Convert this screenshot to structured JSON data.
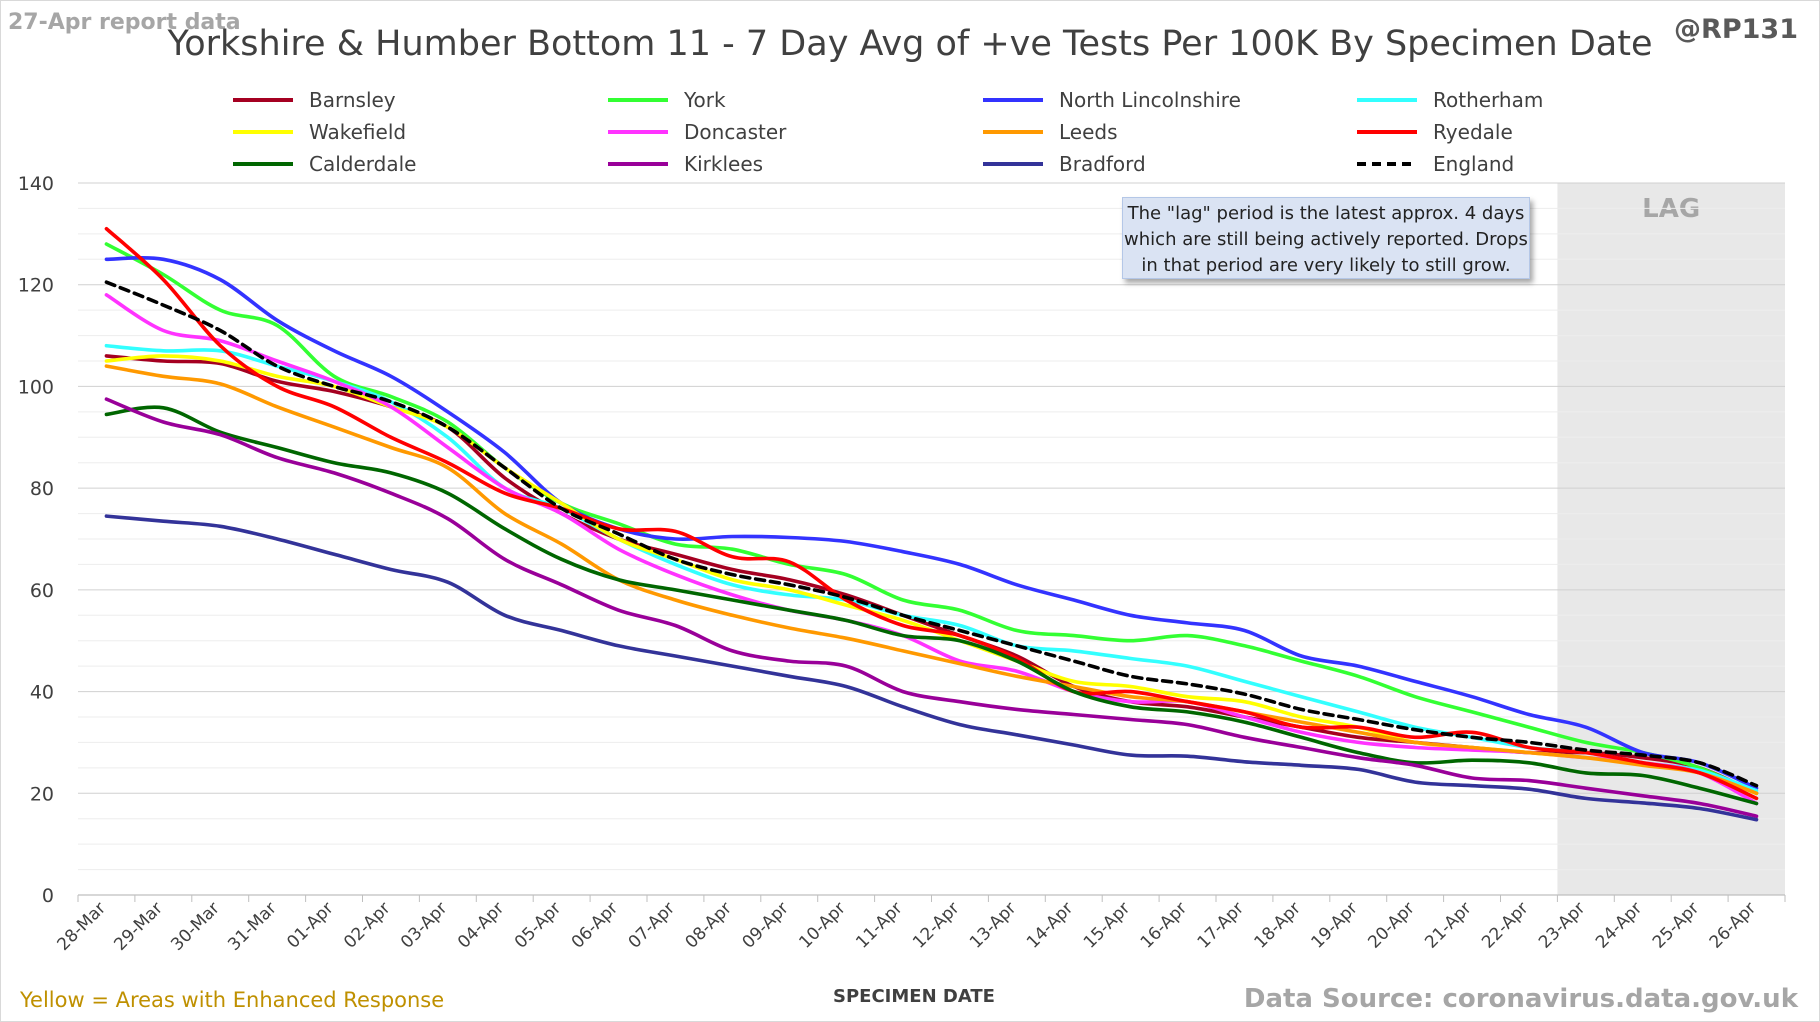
{
  "header": {
    "report_date": "27-Apr report data",
    "handle": "@RP131"
  },
  "footer": {
    "enhanced_note": "Yellow = Areas with Enhanced Response",
    "source": "Data Source: coronavirus.data.gov.uk"
  },
  "annotation": "The \"lag\" period is the latest approx. 4 days which are still being actively reported.  Drops in that period are very likely to still grow.",
  "lag_label": "LAG",
  "chart_data": {
    "type": "line",
    "title": "Yorkshire & Humber Bottom 11 - 7 Day Avg of +ve Tests Per 100K By Specimen Date",
    "xlabel": "SPECIMEN DATE",
    "ylabel": "",
    "ylim": [
      0,
      140
    ],
    "yticks": [
      0,
      20,
      40,
      60,
      80,
      100,
      120,
      140
    ],
    "grid": true,
    "legend_position": "top",
    "lag_period": [
      "23-Apr",
      "26-Apr"
    ],
    "categories": [
      "28-Mar",
      "29-Mar",
      "30-Mar",
      "31-Mar",
      "01-Apr",
      "02-Apr",
      "03-Apr",
      "04-Apr",
      "05-Apr",
      "06-Apr",
      "07-Apr",
      "08-Apr",
      "09-Apr",
      "10-Apr",
      "11-Apr",
      "12-Apr",
      "13-Apr",
      "14-Apr",
      "15-Apr",
      "16-Apr",
      "17-Apr",
      "18-Apr",
      "19-Apr",
      "20-Apr",
      "21-Apr",
      "22-Apr",
      "23-Apr",
      "24-Apr",
      "25-Apr",
      "26-Apr"
    ],
    "series": [
      {
        "name": "Barnsley",
        "color": "#a50021",
        "dashed": false,
        "values": [
          106,
          105,
          104.5,
          101,
          99,
          96,
          92,
          82,
          75,
          70,
          67,
          64,
          62,
          59,
          55,
          51,
          47,
          41,
          38,
          37,
          35,
          33,
          31,
          30,
          29,
          28,
          28,
          27,
          25,
          20
        ]
      },
      {
        "name": "York",
        "color": "#33ff33",
        "dashed": false,
        "values": [
          128,
          122,
          115,
          112,
          102,
          98,
          93,
          84,
          77,
          73,
          69,
          68,
          65,
          63,
          58,
          56,
          52,
          51,
          50,
          51,
          49,
          46,
          43,
          39,
          36,
          33,
          30,
          28,
          25,
          20
        ]
      },
      {
        "name": "North Lincolnshire",
        "color": "#3333ff",
        "dashed": false,
        "values": [
          125,
          125,
          121,
          113,
          107,
          102,
          95,
          87,
          77,
          72,
          70,
          70.5,
          70.3,
          69.5,
          67.5,
          65,
          61,
          58,
          55,
          53.5,
          52,
          47,
          45,
          42,
          39,
          35.5,
          33,
          28,
          26,
          21
        ]
      },
      {
        "name": "Rotherham",
        "color": "#33ffff",
        "dashed": false,
        "values": [
          108,
          107,
          107,
          104,
          101,
          97,
          90,
          80,
          76,
          70,
          65,
          61,
          59,
          58,
          55,
          53,
          49,
          48,
          46.5,
          45,
          42,
          39,
          36,
          33,
          31,
          29,
          28,
          26,
          24.5,
          20.5
        ]
      },
      {
        "name": "Wakefield",
        "color": "#ffff00",
        "dashed": false,
        "values": [
          105,
          106,
          105,
          102,
          100,
          96,
          92,
          84,
          77,
          70,
          66,
          62,
          60,
          57,
          54,
          50,
          46,
          42,
          41,
          39,
          38,
          35,
          33,
          30,
          29,
          28,
          27,
          26,
          24,
          20
        ]
      },
      {
        "name": "Doncaster",
        "color": "#ff33ff",
        "dashed": false,
        "values": [
          118,
          111,
          109,
          105,
          101,
          96,
          88,
          80,
          75,
          68,
          63,
          59,
          56,
          54,
          51,
          46,
          44,
          40,
          38,
          38,
          35,
          32,
          30,
          29,
          28.5,
          28,
          27,
          26,
          24,
          18
        ]
      },
      {
        "name": "Leeds",
        "color": "#ff9900",
        "dashed": false,
        "values": [
          104,
          102,
          100.5,
          96,
          92,
          88,
          84,
          75,
          69,
          62,
          58,
          55,
          52.5,
          50.5,
          48,
          45.5,
          43,
          41,
          39,
          38,
          36,
          34,
          32,
          30,
          29,
          28,
          27,
          25.5,
          24,
          20
        ]
      },
      {
        "name": "Ryedale",
        "color": "#ff0000",
        "dashed": false,
        "values": [
          131,
          121,
          108,
          100,
          96,
          90,
          85,
          79,
          76,
          72,
          71.5,
          66.5,
          65.5,
          58,
          53,
          51,
          46.5,
          40,
          40,
          38,
          36,
          33,
          33,
          31,
          32,
          29,
          28,
          26,
          24,
          19
        ]
      },
      {
        "name": "Calderdale",
        "color": "#006600",
        "dashed": false,
        "values": [
          94.5,
          95.8,
          91,
          88,
          85,
          83,
          79,
          72,
          66,
          62,
          60,
          58,
          56,
          54,
          51,
          50,
          46,
          40,
          37,
          36,
          34,
          31,
          28,
          26,
          26.5,
          26,
          24,
          23.5,
          21,
          18
        ]
      },
      {
        "name": "Kirklees",
        "color": "#990099",
        "dashed": false,
        "values": [
          97.5,
          93,
          90.5,
          86,
          83,
          79,
          74,
          66,
          61,
          56,
          53,
          48,
          46,
          45,
          40,
          38,
          36.5,
          35.5,
          34.5,
          33.5,
          31,
          29,
          27,
          25.5,
          23,
          22.5,
          21,
          19.5,
          18,
          15.5
        ]
      },
      {
        "name": "Bradford",
        "color": "#333399",
        "dashed": false,
        "values": [
          74.5,
          73.5,
          72.5,
          70,
          67,
          64,
          61.5,
          55,
          52,
          49,
          47,
          45,
          43,
          41,
          37,
          33.5,
          31.5,
          29.5,
          27.5,
          27.3,
          26.2,
          25.5,
          24.7,
          22.2,
          21.5,
          20.8,
          19,
          18.1,
          17,
          14.8
        ]
      },
      {
        "name": "England",
        "color": "#000000",
        "dashed": true,
        "values": [
          120.5,
          116,
          111,
          104,
          100,
          97,
          92,
          84,
          76,
          71,
          66,
          63,
          61,
          58.5,
          55,
          52,
          49,
          46,
          43,
          41.5,
          39.5,
          36.5,
          34.5,
          32.5,
          31,
          30,
          28.5,
          27.5,
          26,
          21.5
        ]
      }
    ]
  }
}
